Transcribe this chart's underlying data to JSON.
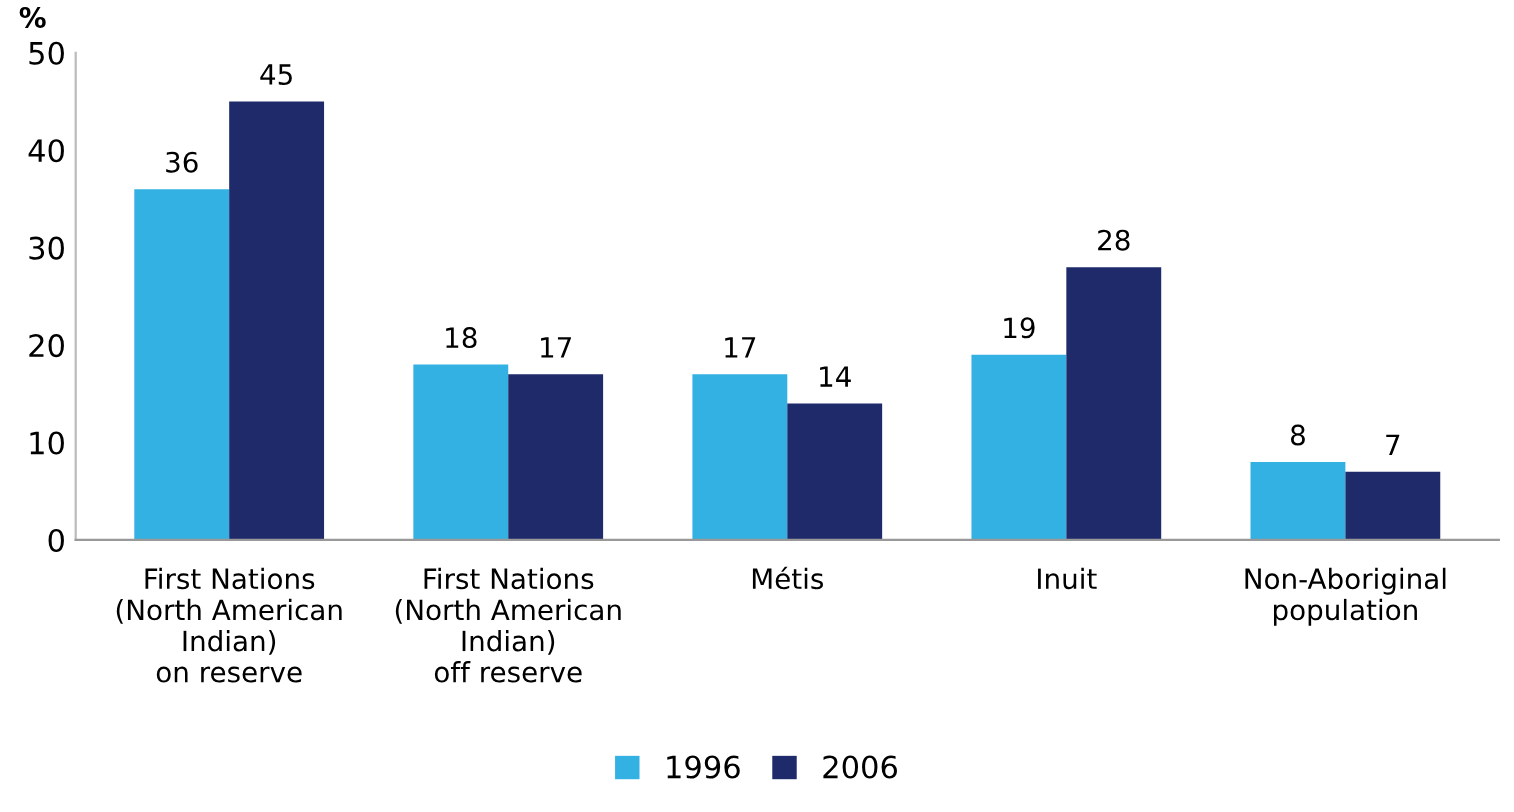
{
  "chart_data": {
    "type": "bar",
    "ylabel": "%",
    "categories": [
      "First Nations\n(North American\nIndian)\non reserve",
      "First Nations\n(North American\nIndian)\noff reserve",
      "Métis",
      "Inuit",
      "Non-Aboriginal\npopulation"
    ],
    "series": [
      {
        "name": "1996",
        "color": "#33b1e3",
        "values": [
          36,
          18,
          17,
          19,
          8
        ]
      },
      {
        "name": "2006",
        "color": "#1f2a6b",
        "values": [
          45,
          17,
          14,
          28,
          7
        ]
      }
    ],
    "ylim": [
      0,
      50
    ],
    "yticks": [
      0,
      10,
      20,
      30,
      40,
      50
    ],
    "grid": false,
    "legend": "bottom",
    "data_labels": true
  }
}
